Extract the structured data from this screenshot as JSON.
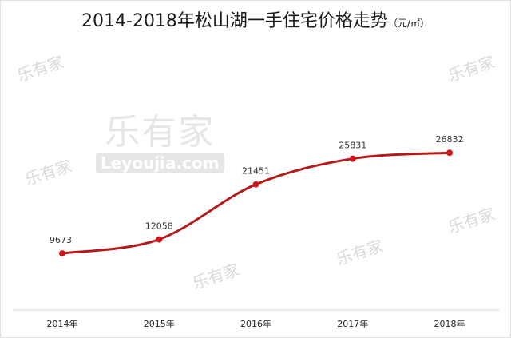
{
  "chart_data": {
    "type": "line",
    "title": "2014-2018年松山湖一手住宅价格走势",
    "unit": "（元/㎡）",
    "categories": [
      "2014年",
      "2015年",
      "2016年",
      "2017年",
      "2018年"
    ],
    "series": [
      {
        "values": [
          9673,
          12058,
          21451,
          25831,
          26832
        ]
      }
    ],
    "data_labels": [
      "9673",
      "12058",
      "21451",
      "25831",
      "26832"
    ],
    "ylim": [
      0,
      30000
    ],
    "grid": false,
    "legend": "none",
    "line_color": "#b31b1b",
    "marker_color": "#d0181c",
    "smooth": true
  },
  "watermark": {
    "cn": "乐有家",
    "en": "Leyoujia.com"
  }
}
